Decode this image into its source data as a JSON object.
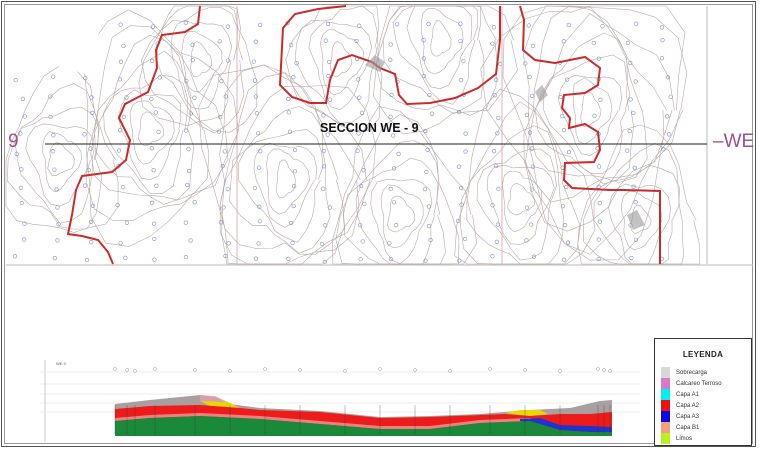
{
  "map": {
    "section_title": "SECCION WE - 9",
    "left_label": "9",
    "right_label": "–WE",
    "colors": {
      "boundary": "#cc2a2a",
      "contour": "#b8aaa8",
      "grid": "#d9a0a8",
      "section_line": "#222222",
      "label": "#a0508c"
    }
  },
  "profile": {
    "label": "WE 9"
  },
  "legend": {
    "title": "LEYENDA",
    "items": [
      {
        "label": "Sobrecarga",
        "color": "#d8d8d8"
      },
      {
        "label": "Calcareo Terroso",
        "color": "#d878c8"
      },
      {
        "label": "Capa A1",
        "color": "#00f0f0"
      },
      {
        "label": "Capa A2",
        "color": "#ee1111"
      },
      {
        "label": "Capa A3",
        "color": "#0a0ae0"
      },
      {
        "label": "Capa B1",
        "color": "#f4a080"
      },
      {
        "label": "Limos",
        "color": "#b8f020"
      }
    ]
  }
}
